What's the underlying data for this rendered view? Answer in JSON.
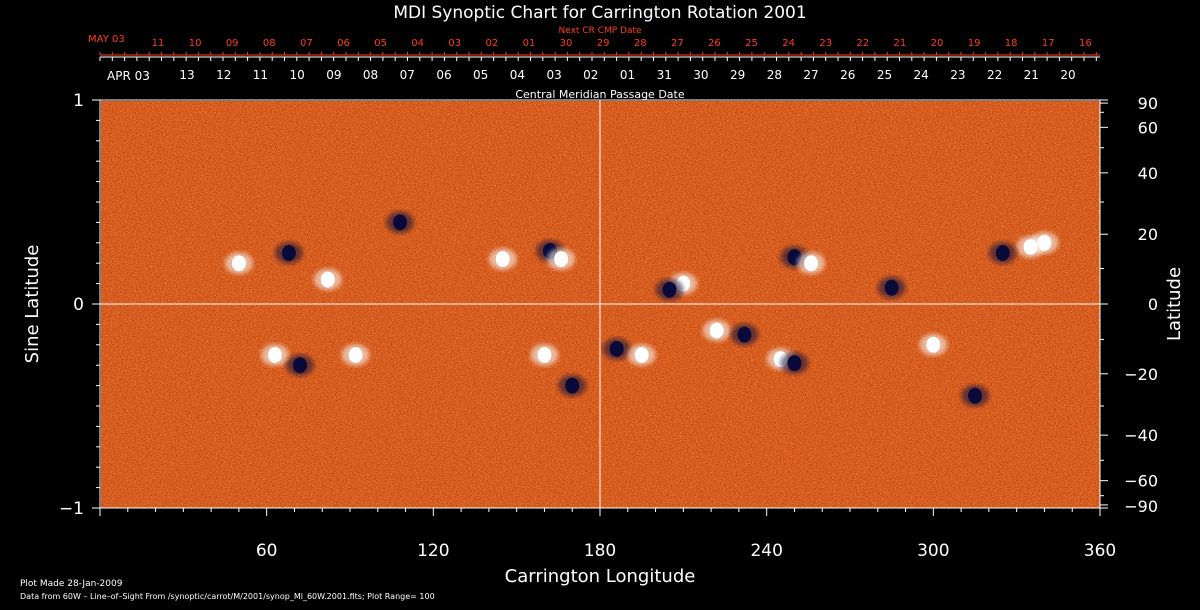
{
  "chart_data": {
    "type": "heatmap",
    "title": "MDI Synoptic Chart for Carrington Rotation 2001",
    "xlabel": "Carrington Longitude",
    "ylabel_left": "Sine Latitude",
    "ylabel_right": "Latitude",
    "xlim": [
      0,
      360
    ],
    "ylim": [
      -1,
      1
    ],
    "x_ticks": [
      "60",
      "120",
      "180",
      "240",
      "300",
      "360"
    ],
    "y_ticks_left": [
      "1",
      "0",
      "−1"
    ],
    "y_ticks_right": [
      "90",
      "60",
      "40",
      "20",
      "0",
      "−20",
      "−40",
      "−60",
      "−90"
    ],
    "y_ticks_right_values": [
      90,
      60,
      40,
      20,
      0,
      -20,
      -40,
      -60,
      -90
    ],
    "top_axis_red": {
      "label": "Next CR CMP Date",
      "first_label": "MAY 03",
      "days": [
        "11",
        "10",
        "09",
        "08",
        "07",
        "06",
        "05",
        "04",
        "03",
        "02",
        "01",
        "30",
        "29",
        "28",
        "27",
        "26",
        "25",
        "24",
        "23",
        "22",
        "21",
        "20",
        "19",
        "18",
        "17",
        "16"
      ]
    },
    "top_axis_white": {
      "label": "Central Meridian Passage Date",
      "first_label": "APR 03",
      "days": [
        "13",
        "12",
        "11",
        "10",
        "09",
        "08",
        "07",
        "06",
        "05",
        "04",
        "03",
        "02",
        "01",
        "31",
        "30",
        "29",
        "28",
        "27",
        "26",
        "25",
        "24",
        "23",
        "22",
        "21",
        "20"
      ]
    },
    "reference_lines": {
      "x": 180,
      "y": 0
    },
    "active_regions": [
      {
        "lon": 68,
        "sinlat": 0.25,
        "polarity": "negative"
      },
      {
        "lon": 82,
        "sinlat": 0.12,
        "polarity": "positive"
      },
      {
        "lon": 50,
        "sinlat": 0.2,
        "polarity": "positive"
      },
      {
        "lon": 108,
        "sinlat": 0.4,
        "polarity": "negative"
      },
      {
        "lon": 145,
        "sinlat": 0.22,
        "polarity": "positive"
      },
      {
        "lon": 162,
        "sinlat": 0.26,
        "polarity": "negative"
      },
      {
        "lon": 166,
        "sinlat": 0.22,
        "polarity": "positive"
      },
      {
        "lon": 210,
        "sinlat": 0.1,
        "polarity": "positive"
      },
      {
        "lon": 205,
        "sinlat": 0.07,
        "polarity": "negative"
      },
      {
        "lon": 250,
        "sinlat": 0.23,
        "polarity": "negative"
      },
      {
        "lon": 256,
        "sinlat": 0.2,
        "polarity": "positive"
      },
      {
        "lon": 285,
        "sinlat": 0.08,
        "polarity": "negative"
      },
      {
        "lon": 335,
        "sinlat": 0.28,
        "polarity": "positive"
      },
      {
        "lon": 340,
        "sinlat": 0.3,
        "polarity": "positive"
      },
      {
        "lon": 325,
        "sinlat": 0.25,
        "polarity": "negative"
      },
      {
        "lon": 63,
        "sinlat": -0.25,
        "polarity": "positive"
      },
      {
        "lon": 72,
        "sinlat": -0.3,
        "polarity": "negative"
      },
      {
        "lon": 92,
        "sinlat": -0.25,
        "polarity": "positive"
      },
      {
        "lon": 160,
        "sinlat": -0.25,
        "polarity": "positive"
      },
      {
        "lon": 186,
        "sinlat": -0.22,
        "polarity": "negative"
      },
      {
        "lon": 195,
        "sinlat": -0.25,
        "polarity": "positive"
      },
      {
        "lon": 222,
        "sinlat": -0.13,
        "polarity": "positive"
      },
      {
        "lon": 232,
        "sinlat": -0.15,
        "polarity": "negative"
      },
      {
        "lon": 245,
        "sinlat": -0.27,
        "polarity": "positive"
      },
      {
        "lon": 250,
        "sinlat": -0.29,
        "polarity": "negative"
      },
      {
        "lon": 300,
        "sinlat": -0.2,
        "polarity": "positive"
      },
      {
        "lon": 315,
        "sinlat": -0.45,
        "polarity": "negative"
      },
      {
        "lon": 170,
        "sinlat": -0.4,
        "polarity": "negative"
      }
    ],
    "colors": {
      "background": "#000000",
      "field_base": "#d84a12",
      "field_bright": "#ffb347",
      "field_dark": "#8a1a05",
      "positive": "#ffffff",
      "negative": "#0a0a3a",
      "top_axis_red": "#ff3b1f"
    }
  },
  "footer": {
    "plot_made": "Plot Made 28-Jan-2009",
    "data_from": "Data from 60W – Line–of–Sight From /synoptic/carrot/M/2001/synop_Ml_60W.2001.fits; Plot Range=  100"
  }
}
